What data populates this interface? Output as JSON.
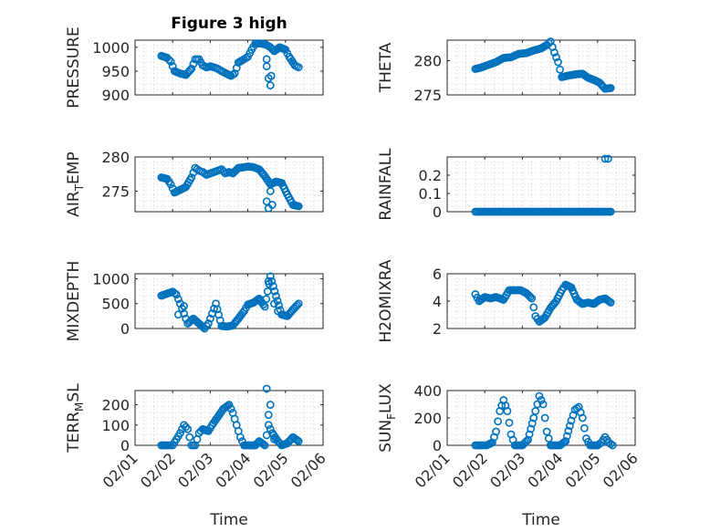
{
  "figure": {
    "title": "Figure 3 high"
  },
  "colors": {
    "marker": "#0072BD",
    "axis": "#262626"
  },
  "chart_data": [
    {
      "type": "scatter",
      "ylabel": "PRESSURE",
      "ylabel_sub": "",
      "ylim": [
        900,
        1015
      ],
      "yticks": [
        900,
        950,
        1000
      ],
      "xlim": [
        0,
        5
      ],
      "xticks": [
        0,
        1,
        2,
        3,
        4,
        5
      ],
      "xticklabels": [
        "02/01",
        "02/02",
        "02/03",
        "02/04",
        "02/05",
        "02/06"
      ],
      "show_xticklabels": false,
      "xlabel": "",
      "grid": true,
      "curve": [
        [
          0.7,
          982
        ],
        [
          0.85,
          978
        ],
        [
          0.95,
          970
        ],
        [
          1.05,
          950
        ],
        [
          1.2,
          945
        ],
        [
          1.35,
          942
        ],
        [
          1.5,
          955
        ],
        [
          1.6,
          975
        ],
        [
          1.7,
          975
        ],
        [
          1.8,
          962
        ],
        [
          1.9,
          958
        ],
        [
          2.0,
          960
        ],
        [
          2.1,
          958
        ],
        [
          2.2,
          955
        ],
        [
          2.3,
          950
        ],
        [
          2.4,
          946
        ],
        [
          2.55,
          940
        ],
        [
          2.65,
          945
        ],
        [
          2.75,
          968
        ],
        [
          2.9,
          975
        ],
        [
          3.0,
          980
        ],
        [
          3.1,
          995
        ],
        [
          3.2,
          1008
        ],
        [
          3.35,
          1008
        ],
        [
          3.5,
          1005
        ],
        [
          3.6,
          1000
        ],
        [
          3.7,
          992
        ],
        [
          3.85,
          1000
        ],
        [
          4.0,
          995
        ],
        [
          4.1,
          980
        ],
        [
          4.25,
          962
        ],
        [
          4.35,
          958
        ]
      ],
      "extra_points": [
        [
          3.55,
          935
        ],
        [
          3.6,
          920
        ],
        [
          3.62,
          940
        ],
        [
          3.5,
          960
        ],
        [
          3.5,
          975
        ]
      ]
    },
    {
      "type": "scatter",
      "ylabel": "THETA",
      "ylabel_sub": "",
      "ylim": [
        275,
        283
      ],
      "yticks": [
        275,
        280
      ],
      "xlim": [
        0,
        5
      ],
      "xticks": [
        0,
        1,
        2,
        3,
        4,
        5
      ],
      "xticklabels": [
        "02/01",
        "02/02",
        "02/03",
        "02/04",
        "02/05",
        "02/06"
      ],
      "show_xticklabels": false,
      "xlabel": "",
      "grid": true,
      "curve": [
        [
          0.75,
          278.8
        ],
        [
          0.9,
          279
        ],
        [
          1.1,
          279.4
        ],
        [
          1.3,
          279.8
        ],
        [
          1.5,
          280.4
        ],
        [
          1.7,
          280.5
        ],
        [
          1.9,
          281
        ],
        [
          2.1,
          281.1
        ],
        [
          2.3,
          281.5
        ],
        [
          2.5,
          281.8
        ],
        [
          2.65,
          282.3
        ],
        [
          2.75,
          282.8
        ],
        [
          2.85,
          281.2
        ],
        [
          2.95,
          279.8
        ],
        [
          3.05,
          277.6
        ],
        [
          3.2,
          277.8
        ],
        [
          3.4,
          278
        ],
        [
          3.6,
          278.1
        ],
        [
          3.75,
          277.5
        ],
        [
          3.9,
          277.2
        ],
        [
          4.05,
          276.8
        ],
        [
          4.2,
          275.9
        ],
        [
          4.35,
          276
        ]
      ],
      "extra_points": []
    },
    {
      "type": "scatter",
      "ylabel": "AIR",
      "ylabel_sub": "T",
      "ylabel_rest": "EMP",
      "ylim": [
        272,
        280
      ],
      "yticks": [
        275,
        280
      ],
      "xlim": [
        0,
        5
      ],
      "xticks": [
        0,
        1,
        2,
        3,
        4,
        5
      ],
      "xticklabels": [
        "02/01",
        "02/02",
        "02/03",
        "02/04",
        "02/05",
        "02/06"
      ],
      "show_xticklabels": false,
      "xlabel": "",
      "grid": true,
      "curve": [
        [
          0.7,
          277
        ],
        [
          0.85,
          276.8
        ],
        [
          0.95,
          276
        ],
        [
          1.05,
          274.8
        ],
        [
          1.2,
          275.2
        ],
        [
          1.35,
          275.6
        ],
        [
          1.5,
          277
        ],
        [
          1.6,
          278.4
        ],
        [
          1.7,
          278
        ],
        [
          1.8,
          277.8
        ],
        [
          1.9,
          277.4
        ],
        [
          2.0,
          277.6
        ],
        [
          2.1,
          277.8
        ],
        [
          2.2,
          278
        ],
        [
          2.3,
          278.2
        ],
        [
          2.4,
          277.6
        ],
        [
          2.5,
          277.8
        ],
        [
          2.6,
          277.6
        ],
        [
          2.75,
          278.4
        ],
        [
          2.9,
          278.5
        ],
        [
          3.0,
          278.6
        ],
        [
          3.15,
          278.5
        ],
        [
          3.3,
          278.2
        ],
        [
          3.45,
          277.2
        ],
        [
          3.6,
          276
        ],
        [
          3.75,
          276.4
        ],
        [
          3.9,
          276.2
        ],
        [
          4.05,
          274.5
        ],
        [
          4.2,
          273
        ],
        [
          4.35,
          272.8
        ]
      ],
      "extra_points": [
        [
          3.5,
          273.5
        ],
        [
          3.55,
          272.5
        ],
        [
          3.6,
          275
        ],
        [
          3.65,
          273
        ]
      ]
    },
    {
      "type": "scatter",
      "ylabel": "RAINFALL",
      "ylabel_sub": "",
      "ylim": [
        0,
        0.3
      ],
      "yticks": [
        0,
        0.1,
        0.2
      ],
      "xlim": [
        0,
        5
      ],
      "xticks": [
        0,
        1,
        2,
        3,
        4,
        5
      ],
      "xticklabels": [
        "02/01",
        "02/02",
        "02/03",
        "02/04",
        "02/05",
        "02/06"
      ],
      "show_xticklabels": false,
      "xlabel": "",
      "grid": true,
      "curve": [
        [
          0.75,
          0
        ],
        [
          4.35,
          0
        ]
      ],
      "extra_points": [
        [
          4.2,
          0.29
        ],
        [
          4.28,
          0.29
        ]
      ]
    },
    {
      "type": "scatter",
      "ylabel": "MIXDEPTH",
      "ylabel_sub": "",
      "ylim": [
        0,
        1100
      ],
      "yticks": [
        0,
        500,
        1000
      ],
      "xlim": [
        0,
        5
      ],
      "xticks": [
        0,
        1,
        2,
        3,
        4,
        5
      ],
      "xticklabels": [
        "02/01",
        "02/02",
        "02/03",
        "02/04",
        "02/05",
        "02/06"
      ],
      "show_xticklabels": false,
      "xlabel": "",
      "grid": true,
      "curve": [
        [
          0.7,
          660
        ],
        [
          0.85,
          700
        ],
        [
          1.0,
          740
        ],
        [
          1.1,
          680
        ],
        [
          1.2,
          500
        ],
        [
          1.3,
          300
        ],
        [
          1.4,
          100
        ],
        [
          1.55,
          200
        ],
        [
          1.7,
          100
        ],
        [
          1.85,
          0
        ],
        [
          1.95,
          100
        ],
        [
          2.05,
          300
        ],
        [
          2.15,
          500
        ],
        [
          2.3,
          50
        ],
        [
          2.45,
          40
        ],
        [
          2.6,
          60
        ],
        [
          2.75,
          200
        ],
        [
          2.9,
          350
        ],
        [
          3.0,
          480
        ],
        [
          3.15,
          520
        ],
        [
          3.3,
          600
        ],
        [
          3.45,
          440
        ],
        [
          3.6,
          1050
        ],
        [
          3.75,
          650
        ],
        [
          3.9,
          280
        ],
        [
          4.05,
          250
        ],
        [
          4.2,
          380
        ],
        [
          4.35,
          500
        ]
      ],
      "extra_points": [
        [
          1.15,
          280
        ],
        [
          1.3,
          450
        ],
        [
          3.55,
          950
        ],
        [
          3.7,
          500
        ],
        [
          3.8,
          350
        ]
      ]
    },
    {
      "type": "scatter",
      "ylabel": "H2OMIXRA",
      "ylabel_sub": "",
      "ylim": [
        2,
        6
      ],
      "yticks": [
        2,
        4,
        6
      ],
      "xlim": [
        0,
        5
      ],
      "xticks": [
        0,
        1,
        2,
        3,
        4,
        5
      ],
      "xticklabels": [
        "02/01",
        "02/02",
        "02/03",
        "02/04",
        "02/05",
        "02/06"
      ],
      "show_xticklabels": false,
      "xlabel": "",
      "grid": true,
      "curve": [
        [
          0.75,
          4.5
        ],
        [
          0.85,
          4.0
        ],
        [
          1.0,
          4.3
        ],
        [
          1.15,
          4.2
        ],
        [
          1.3,
          4.3
        ],
        [
          1.5,
          4.1
        ],
        [
          1.65,
          4.8
        ],
        [
          1.8,
          4.8
        ],
        [
          1.95,
          4.8
        ],
        [
          2.1,
          4.6
        ],
        [
          2.25,
          4.2
        ],
        [
          2.35,
          2.9
        ],
        [
          2.45,
          2.5
        ],
        [
          2.6,
          2.8
        ],
        [
          2.75,
          3.5
        ],
        [
          2.9,
          4.0
        ],
        [
          3.05,
          4.8
        ],
        [
          3.15,
          5.2
        ],
        [
          3.3,
          5.0
        ],
        [
          3.45,
          4.1
        ],
        [
          3.6,
          3.8
        ],
        [
          3.75,
          3.9
        ],
        [
          3.9,
          3.8
        ],
        [
          4.05,
          4.1
        ],
        [
          4.2,
          4.2
        ],
        [
          4.35,
          3.9
        ]
      ],
      "extra_points": []
    },
    {
      "type": "scatter",
      "ylabel": "TERR",
      "ylabel_sub": "M",
      "ylabel_rest": "SL",
      "ylim": [
        0,
        270
      ],
      "yticks": [
        0,
        100,
        200
      ],
      "xlim": [
        0,
        5
      ],
      "xticks": [
        0,
        1,
        2,
        3,
        4,
        5
      ],
      "xticklabels": [
        "02/01",
        "02/02",
        "02/03",
        "02/04",
        "02/05",
        "02/06"
      ],
      "show_xticklabels": true,
      "xlabel": "Time",
      "grid": true,
      "curve": [
        [
          0.7,
          0
        ],
        [
          0.9,
          0
        ],
        [
          1.0,
          0
        ],
        [
          1.1,
          30
        ],
        [
          1.2,
          60
        ],
        [
          1.3,
          100
        ],
        [
          1.4,
          80
        ],
        [
          1.5,
          0
        ],
        [
          1.6,
          0
        ],
        [
          1.7,
          60
        ],
        [
          1.8,
          80
        ],
        [
          1.95,
          70
        ],
        [
          2.05,
          100
        ],
        [
          2.2,
          140
        ],
        [
          2.35,
          180
        ],
        [
          2.5,
          200
        ],
        [
          2.6,
          160
        ],
        [
          2.7,
          100
        ],
        [
          2.8,
          40
        ],
        [
          2.9,
          0
        ],
        [
          3.05,
          0
        ],
        [
          3.2,
          0
        ],
        [
          3.3,
          20
        ],
        [
          3.45,
          0
        ],
        [
          3.55,
          100
        ],
        [
          3.65,
          60
        ],
        [
          3.8,
          20
        ],
        [
          3.9,
          0
        ],
        [
          4.05,
          10
        ],
        [
          4.2,
          40
        ],
        [
          4.35,
          20
        ]
      ],
      "extra_points": [
        [
          3.5,
          280
        ],
        [
          3.55,
          150
        ],
        [
          3.6,
          200
        ],
        [
          3.7,
          30
        ]
      ]
    },
    {
      "type": "scatter",
      "ylabel": "SUN",
      "ylabel_sub": "F",
      "ylabel_rest": "LUX",
      "ylim": [
        0,
        400
      ],
      "yticks": [
        0,
        200,
        400
      ],
      "xlim": [
        0,
        5
      ],
      "xticks": [
        0,
        1,
        2,
        3,
        4,
        5
      ],
      "xticklabels": [
        "02/01",
        "02/02",
        "02/03",
        "02/04",
        "02/05",
        "02/06"
      ],
      "show_xticklabels": true,
      "xlabel": "Time",
      "grid": true,
      "curve": [
        [
          0.75,
          0
        ],
        [
          1.05,
          0
        ],
        [
          1.2,
          20
        ],
        [
          1.3,
          100
        ],
        [
          1.4,
          250
        ],
        [
          1.5,
          330
        ],
        [
          1.6,
          250
        ],
        [
          1.7,
          80
        ],
        [
          1.8,
          0
        ],
        [
          2.0,
          0
        ],
        [
          2.15,
          40
        ],
        [
          2.3,
          200
        ],
        [
          2.4,
          300
        ],
        [
          2.45,
          360
        ],
        [
          2.55,
          300
        ],
        [
          2.65,
          100
        ],
        [
          2.75,
          0
        ],
        [
          3.0,
          0
        ],
        [
          3.15,
          30
        ],
        [
          3.3,
          180
        ],
        [
          3.4,
          260
        ],
        [
          3.5,
          280
        ],
        [
          3.6,
          200
        ],
        [
          3.7,
          50
        ],
        [
          3.8,
          0
        ],
        [
          4.0,
          0
        ],
        [
          4.1,
          20
        ],
        [
          4.2,
          60
        ],
        [
          4.3,
          20
        ],
        [
          4.4,
          0
        ]
      ],
      "extra_points": []
    }
  ]
}
